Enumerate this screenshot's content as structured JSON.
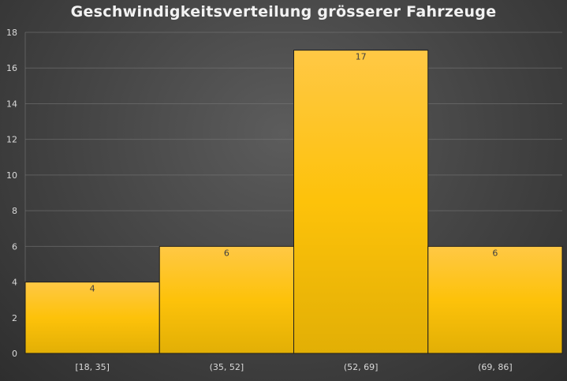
{
  "chart_data": {
    "type": "bar",
    "title": "Geschwindigkeitsverteilung grösserer Fahrzeuge",
    "categories": [
      "[18, 35]",
      "(35, 52]",
      "(52, 69]",
      "(69, 86]"
    ],
    "values": [
      4,
      6,
      17,
      6
    ],
    "data_labels": [
      "4",
      "6",
      "17",
      "6"
    ],
    "ylim": [
      0,
      18
    ],
    "yticks": [
      0,
      2,
      4,
      6,
      8,
      10,
      12,
      14,
      16,
      18
    ],
    "xlabel": "",
    "ylabel": "",
    "grid": true,
    "legend": "none",
    "colors": {
      "bar_top": "#ffc845",
      "bar_mid": "#fdc20a",
      "bar_bottom": "#e2af05",
      "background": "#474747",
      "grid": "#7a7a7a",
      "text": "#d9d9d9"
    }
  }
}
